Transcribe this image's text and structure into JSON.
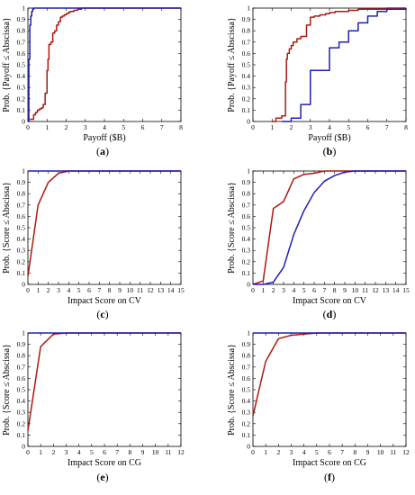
{
  "colors": {
    "red": "#aa1a10",
    "blue": "#1f1fb8",
    "axis": "#000000",
    "background": "#ffffff"
  },
  "chart_data": [
    {
      "type": "line",
      "panel": "a",
      "step": true,
      "panel_label": {
        "open": "(",
        "letter": "a",
        "close": ")"
      },
      "xlabel": "Payoff ($B)",
      "ylabel": "Prob. {Payoff ≤ Abscissa}",
      "xlim": [
        0,
        8
      ],
      "ylim": [
        0,
        1
      ],
      "xticks": [
        0,
        1,
        2,
        3,
        4,
        5,
        6,
        7,
        8
      ],
      "xtick_labels": [
        "0",
        "1",
        "2",
        "3",
        "4",
        "5",
        "6",
        "7",
        "8"
      ],
      "yticks": [
        0,
        0.1,
        0.2,
        0.3,
        0.4,
        0.5,
        0.6,
        0.7,
        0.8,
        0.9,
        1
      ],
      "ytick_labels": [
        "0",
        "0.1",
        "0.2",
        "0.3",
        "0.4",
        "0.5",
        "0.6",
        "0.7",
        "0.8",
        "0.9",
        "1"
      ],
      "series": [
        {
          "color": "red",
          "x": [
            0.1,
            0.3,
            0.4,
            0.5,
            0.6,
            0.7,
            0.8,
            0.9,
            1.0,
            1.05,
            1.1,
            1.2,
            1.3,
            1.4,
            1.5,
            1.6,
            1.7,
            1.8,
            1.9,
            2.0,
            2.1,
            2.2,
            2.3,
            2.4,
            2.5,
            2.6,
            2.7,
            2.8,
            2.9
          ],
          "y": [
            0.02,
            0.06,
            0.08,
            0.1,
            0.11,
            0.12,
            0.15,
            0.25,
            0.45,
            0.55,
            0.68,
            0.7,
            0.78,
            0.8,
            0.85,
            0.88,
            0.92,
            0.93,
            0.94,
            0.95,
            0.96,
            0.97,
            0.97,
            0.98,
            0.98,
            0.99,
            0.99,
            1.0,
            1.0
          ]
        },
        {
          "color": "blue",
          "x": [
            0.0,
            0.05,
            0.1,
            0.15,
            0.2,
            0.25,
            0.3
          ],
          "y": [
            0.0,
            0.55,
            0.85,
            0.93,
            0.97,
            0.99,
            1.0
          ]
        }
      ]
    },
    {
      "type": "line",
      "panel": "b",
      "step": true,
      "panel_label": {
        "open": "(",
        "letter": "b",
        "close": ")"
      },
      "xlabel": "Payoff ($B)",
      "ylabel": "Prob. {Payoff ≤ Abscissa}",
      "xlim": [
        0,
        8
      ],
      "ylim": [
        0,
        1
      ],
      "xticks": [
        0,
        1,
        2,
        3,
        4,
        5,
        6,
        7,
        8
      ],
      "xtick_labels": [
        "0",
        "1",
        "2",
        "3",
        "4",
        "5",
        "6",
        "7",
        "8"
      ],
      "yticks": [
        0,
        0.1,
        0.2,
        0.3,
        0.4,
        0.5,
        0.6,
        0.7,
        0.8,
        0.9,
        1
      ],
      "ytick_labels": [
        "0",
        "0.1",
        "0.2",
        "0.3",
        "0.4",
        "0.5",
        "0.6",
        "0.7",
        "0.8",
        "0.9",
        "1"
      ],
      "series": [
        {
          "color": "red",
          "x": [
            1.0,
            1.2,
            1.5,
            1.7,
            1.75,
            1.8,
            1.9,
            2.0,
            2.1,
            2.3,
            2.5,
            2.8,
            3.0,
            3.2,
            3.5,
            3.8,
            4.0,
            4.3,
            4.6,
            5.0,
            5.5,
            6.0,
            6.5,
            7.0,
            7.5,
            8.0
          ],
          "y": [
            0.0,
            0.03,
            0.05,
            0.35,
            0.55,
            0.6,
            0.64,
            0.67,
            0.7,
            0.73,
            0.75,
            0.85,
            0.92,
            0.93,
            0.94,
            0.95,
            0.96,
            0.97,
            0.97,
            0.98,
            0.99,
            0.99,
            0.99,
            1.0,
            1.0,
            1.0
          ]
        },
        {
          "color": "blue",
          "x": [
            1.5,
            2.0,
            2.5,
            3.0,
            3.5,
            4.0,
            4.5,
            5.0,
            5.5,
            6.0,
            6.5,
            7.0,
            8.0
          ],
          "y": [
            0.0,
            0.03,
            0.15,
            0.45,
            0.45,
            0.65,
            0.7,
            0.8,
            0.87,
            0.93,
            0.97,
            0.99,
            1.0
          ]
        }
      ]
    },
    {
      "type": "line",
      "panel": "c",
      "step": false,
      "panel_label": {
        "open": "(",
        "letter": "c",
        "close": ")"
      },
      "xlabel": "Impact Score on CV",
      "ylabel": "Prob. {Score ≤ Abscissa}",
      "xlim": [
        0,
        15
      ],
      "ylim": [
        0,
        1
      ],
      "xticks": [
        0,
        1,
        2,
        3,
        4,
        5,
        6,
        7,
        8,
        9,
        10,
        11,
        12,
        13,
        14,
        15
      ],
      "xtick_labels": [
        "0",
        "1",
        "2",
        "3",
        "4",
        "5",
        "6",
        "7",
        "8",
        "9",
        "10",
        "11",
        "12",
        "13",
        "14",
        "15"
      ],
      "yticks": [
        0,
        0.1,
        0.2,
        0.3,
        0.4,
        0.5,
        0.6,
        0.7,
        0.8,
        0.9,
        1
      ],
      "ytick_labels": [
        "0",
        "0.1",
        "0.2",
        "0.3",
        "0.4",
        "0.5",
        "0.6",
        "0.7",
        "0.8",
        "0.9",
        "1"
      ],
      "series": [
        {
          "color": "red",
          "x": [
            0,
            1,
            2,
            3,
            4,
            5,
            15
          ],
          "y": [
            0.07,
            0.7,
            0.9,
            0.98,
            1.0,
            1.0,
            1.0
          ]
        },
        {
          "color": "blue",
          "x": [
            0,
            1,
            15
          ],
          "y": [
            1.0,
            1.0,
            1.0
          ]
        }
      ]
    },
    {
      "type": "line",
      "panel": "d",
      "step": false,
      "panel_label": {
        "open": "(",
        "letter": "d",
        "close": ")"
      },
      "xlabel": "Impact Score on CV",
      "ylabel": "Prob. {Score ≤ Abscissa}",
      "xlim": [
        0,
        15
      ],
      "ylim": [
        0,
        1
      ],
      "xticks": [
        0,
        1,
        2,
        3,
        4,
        5,
        6,
        7,
        8,
        9,
        10,
        11,
        12,
        13,
        14,
        15
      ],
      "xtick_labels": [
        "0",
        "1",
        "2",
        "3",
        "4",
        "5",
        "6",
        "7",
        "8",
        "9",
        "10",
        "11",
        "12",
        "13",
        "14",
        "15"
      ],
      "yticks": [
        0,
        0.1,
        0.2,
        0.3,
        0.4,
        0.5,
        0.6,
        0.7,
        0.8,
        0.9,
        1
      ],
      "ytick_labels": [
        "0",
        "0.1",
        "0.2",
        "0.3",
        "0.4",
        "0.5",
        "0.6",
        "0.7",
        "0.8",
        "0.9",
        "1"
      ],
      "series": [
        {
          "color": "red",
          "x": [
            0,
            1,
            2,
            3,
            4,
            5,
            6,
            7,
            8,
            9,
            15
          ],
          "y": [
            0.0,
            0.03,
            0.67,
            0.73,
            0.93,
            0.97,
            0.98,
            1.0,
            1.0,
            1.0,
            1.0
          ]
        },
        {
          "color": "blue",
          "x": [
            0,
            1,
            2,
            3,
            4,
            5,
            6,
            7,
            8,
            9,
            10,
            11,
            12,
            13,
            14,
            15
          ],
          "y": [
            0.0,
            0.0,
            0.02,
            0.15,
            0.44,
            0.65,
            0.81,
            0.91,
            0.96,
            0.99,
            1.0,
            1.0,
            1.0,
            1.0,
            1.0,
            1.0
          ]
        }
      ]
    },
    {
      "type": "line",
      "panel": "e",
      "step": false,
      "panel_label": {
        "open": "(",
        "letter": "e",
        "close": ")"
      },
      "xlabel": "Impact Score on CG",
      "ylabel": "Prob. {Score ≤ Abscissa}",
      "xlim": [
        0,
        12
      ],
      "ylim": [
        0,
        1
      ],
      "xticks": [
        0,
        1,
        2,
        3,
        4,
        5,
        6,
        7,
        8,
        9,
        10,
        11,
        12
      ],
      "xtick_labels": [
        "0",
        "1",
        "2",
        "3",
        "4",
        "5",
        "6",
        "7",
        "8",
        "9",
        "10",
        "11",
        "12"
      ],
      "yticks": [
        0,
        0.1,
        0.2,
        0.3,
        0.4,
        0.5,
        0.6,
        0.7,
        0.8,
        0.9,
        1
      ],
      "ytick_labels": [
        "0",
        "0.1",
        "0.2",
        "0.3",
        "0.4",
        "0.5",
        "0.6",
        "0.7",
        "0.8",
        "0.9",
        "1"
      ],
      "series": [
        {
          "color": "red",
          "x": [
            0,
            1,
            2,
            3,
            12
          ],
          "y": [
            0.14,
            0.88,
            0.99,
            1.0,
            1.0
          ]
        },
        {
          "color": "blue",
          "x": [
            0,
            1,
            12
          ],
          "y": [
            1.0,
            1.0,
            1.0
          ]
        }
      ]
    },
    {
      "type": "line",
      "panel": "f",
      "step": false,
      "panel_label": {
        "open": "(",
        "letter": "f",
        "close": ")"
      },
      "xlabel": "Impact Score on CG",
      "ylabel": "Prob. {Score ≤ Abscissa}",
      "xlim": [
        0,
        12
      ],
      "ylim": [
        0,
        1
      ],
      "xticks": [
        0,
        1,
        2,
        3,
        4,
        5,
        6,
        7,
        8,
        9,
        10,
        11,
        12
      ],
      "xtick_labels": [
        "0",
        "1",
        "2",
        "3",
        "4",
        "5",
        "6",
        "7",
        "8",
        "9",
        "10",
        "11",
        "12"
      ],
      "yticks": [
        0,
        0.1,
        0.2,
        0.3,
        0.4,
        0.5,
        0.6,
        0.7,
        0.8,
        0.9,
        1
      ],
      "ytick_labels": [
        "0",
        "0.1",
        "0.2",
        "0.3",
        "0.4",
        "0.5",
        "0.6",
        "0.7",
        "0.8",
        "0.9",
        "1"
      ],
      "series": [
        {
          "color": "red",
          "x": [
            0,
            1,
            2,
            3,
            4,
            5,
            6,
            7,
            12
          ],
          "y": [
            0.27,
            0.75,
            0.95,
            0.98,
            0.99,
            1.0,
            1.0,
            1.0,
            1.0
          ]
        },
        {
          "color": "blue",
          "x": [
            0,
            1,
            12
          ],
          "y": [
            1.0,
            1.0,
            1.0
          ]
        }
      ]
    }
  ]
}
